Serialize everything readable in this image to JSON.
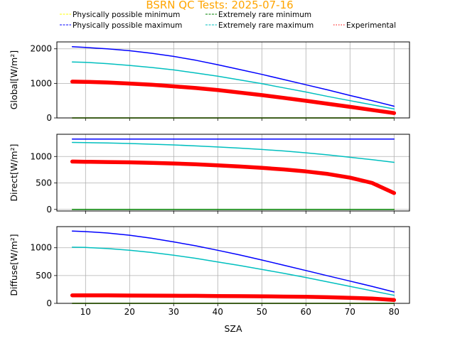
{
  "title": "BSRN QC Tests: 2025-07-16",
  "colors": {
    "title": "#ffa500",
    "phys_min": "#ffff00",
    "phys_max": "#0000ff",
    "rare_min": "#008000",
    "rare_max": "#00bfbf",
    "experimental": "#ff0000"
  },
  "legend": {
    "items": [
      {
        "label": "Physically possible minimum",
        "color_key": "phys_min",
        "style": "dashed"
      },
      {
        "label": "Physically possible maximum",
        "color_key": "phys_max",
        "style": "dashed"
      },
      {
        "label": "Extremely rare minimum",
        "color_key": "rare_min",
        "style": "dashed"
      },
      {
        "label": "Extremely rare maximum",
        "color_key": "rare_max",
        "style": "dashed"
      },
      {
        "label": "Experimental",
        "color_key": "experimental",
        "style": "dotted"
      }
    ]
  },
  "chart_data": [
    {
      "type": "line",
      "ylabel": "Global[W/m²]",
      "xlim": [
        3.5,
        83.5
      ],
      "ylim": [
        0,
        2200
      ],
      "yticks": [
        0,
        1000,
        2000
      ],
      "xticks": [
        10,
        20,
        30,
        40,
        50,
        60,
        70,
        80
      ],
      "show_xtick_labels": false,
      "grid": true,
      "x": [
        7,
        10,
        15,
        20,
        25,
        30,
        35,
        40,
        45,
        50,
        55,
        60,
        65,
        70,
        75,
        80
      ],
      "series": [
        {
          "key": "phys_min",
          "values": [
            0,
            0,
            0,
            0,
            0,
            0,
            0,
            0,
            0,
            0,
            0,
            0,
            0,
            0,
            0,
            0
          ]
        },
        {
          "key": "rare_min",
          "values": [
            0,
            0,
            0,
            0,
            0,
            0,
            0,
            0,
            0,
            0,
            0,
            0,
            0,
            0,
            0,
            0
          ]
        },
        {
          "key": "phys_max",
          "values": [
            2060,
            2040,
            2000,
            1945,
            1870,
            1780,
            1670,
            1540,
            1400,
            1260,
            1110,
            960,
            810,
            650,
            500,
            340
          ]
        },
        {
          "key": "rare_max",
          "values": [
            1620,
            1610,
            1570,
            1520,
            1460,
            1390,
            1300,
            1210,
            1100,
            990,
            870,
            750,
            620,
            500,
            380,
            260
          ]
        },
        {
          "key": "experimental",
          "values": [
            1050,
            1045,
            1025,
            995,
            960,
            915,
            865,
            805,
            735,
            660,
            580,
            495,
            410,
            320,
            230,
            140
          ]
        }
      ]
    },
    {
      "type": "line",
      "ylabel": "Direct[W/m²]",
      "xlim": [
        3.5,
        83.5
      ],
      "ylim": [
        -30,
        1420
      ],
      "yticks": [
        0,
        500,
        1000
      ],
      "xticks": [
        10,
        20,
        30,
        40,
        50,
        60,
        70,
        80
      ],
      "show_xtick_labels": false,
      "grid": true,
      "x": [
        7,
        10,
        15,
        20,
        25,
        30,
        35,
        40,
        45,
        50,
        55,
        60,
        65,
        70,
        75,
        80
      ],
      "series": [
        {
          "key": "phys_min",
          "values": [
            0,
            0,
            0,
            0,
            0,
            0,
            0,
            0,
            0,
            0,
            0,
            0,
            0,
            0,
            0,
            0
          ]
        },
        {
          "key": "rare_min",
          "values": [
            0,
            0,
            0,
            0,
            0,
            0,
            0,
            0,
            0,
            0,
            0,
            0,
            0,
            0,
            0,
            0
          ]
        },
        {
          "key": "phys_max",
          "values": [
            1330,
            1330,
            1330,
            1330,
            1330,
            1330,
            1330,
            1330,
            1330,
            1330,
            1330,
            1330,
            1330,
            1330,
            1330,
            1330
          ]
        },
        {
          "key": "rare_max",
          "values": [
            1265,
            1262,
            1255,
            1245,
            1232,
            1218,
            1200,
            1180,
            1158,
            1133,
            1104,
            1070,
            1030,
            985,
            940,
            890
          ]
        },
        {
          "key": "experimental",
          "values": [
            905,
            900,
            895,
            890,
            880,
            868,
            852,
            833,
            810,
            785,
            755,
            718,
            670,
            600,
            500,
            310
          ]
        }
      ]
    },
    {
      "type": "line",
      "ylabel": "Diffuse[W/m²]",
      "xlabel": "SZA",
      "xlim": [
        3.5,
        83.5
      ],
      "ylim": [
        0,
        1380
      ],
      "yticks": [
        0,
        500,
        1000
      ],
      "xticks": [
        10,
        20,
        30,
        40,
        50,
        60,
        70,
        80
      ],
      "show_xtick_labels": true,
      "grid": true,
      "x": [
        7,
        10,
        15,
        20,
        25,
        30,
        35,
        40,
        45,
        50,
        55,
        60,
        65,
        70,
        75,
        80
      ],
      "series": [
        {
          "key": "phys_min",
          "values": [
            0,
            0,
            0,
            0,
            0,
            0,
            0,
            0,
            0,
            0,
            0,
            0,
            0,
            0,
            0,
            0
          ]
        },
        {
          "key": "rare_min",
          "values": [
            0,
            0,
            0,
            0,
            0,
            0,
            0,
            0,
            0,
            0,
            0,
            0,
            0,
            0,
            0,
            0
          ]
        },
        {
          "key": "phys_max",
          "values": [
            1300,
            1290,
            1265,
            1225,
            1170,
            1105,
            1035,
            955,
            870,
            780,
            685,
            590,
            495,
            400,
            305,
            205
          ]
        },
        {
          "key": "rare_max",
          "values": [
            1010,
            1005,
            985,
            955,
            915,
            865,
            810,
            745,
            680,
            610,
            540,
            465,
            385,
            305,
            225,
            145
          ]
        },
        {
          "key": "experimental",
          "values": [
            145,
            145,
            143,
            141,
            139,
            137,
            135,
            132,
            129,
            126,
            122,
            117,
            110,
            100,
            85,
            60
          ]
        }
      ]
    }
  ]
}
